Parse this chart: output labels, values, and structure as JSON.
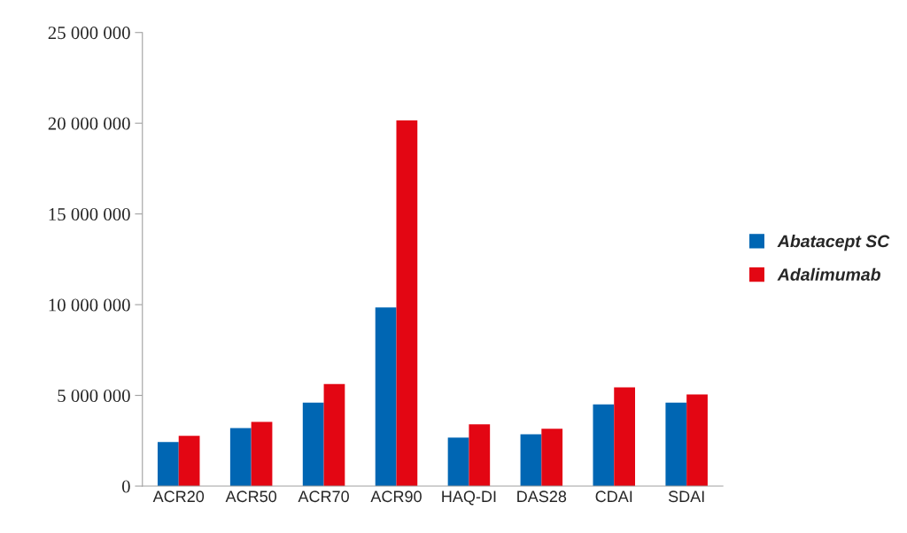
{
  "chart_data": {
    "type": "bar",
    "categories": [
      "ACR20",
      "ACR50",
      "ACR70",
      "ACR90",
      "HAQ-DI",
      "DAS28",
      "CDAI",
      "SDAI"
    ],
    "series": [
      {
        "name": "Abatacept SC",
        "color": "#0066b3",
        "values": [
          2430000,
          3200000,
          4600000,
          9850000,
          2670000,
          2860000,
          4500000,
          4600000
        ]
      },
      {
        "name": "Adalimumab",
        "color": "#e30613",
        "values": [
          2770000,
          3540000,
          5630000,
          20150000,
          3400000,
          3160000,
          5440000,
          5050000
        ]
      }
    ],
    "ylim": [
      0,
      25000000
    ],
    "yticks": [
      {
        "value": 0,
        "label": "0"
      },
      {
        "value": 5000000,
        "label": "5 000 000"
      },
      {
        "value": 10000000,
        "label": "10 000 000"
      },
      {
        "value": 15000000,
        "label": "15 000 000"
      },
      {
        "value": 20000000,
        "label": "20 000 000"
      },
      {
        "value": 25000000,
        "label": "25 000 000"
      }
    ],
    "grid": false,
    "legend": "right"
  }
}
